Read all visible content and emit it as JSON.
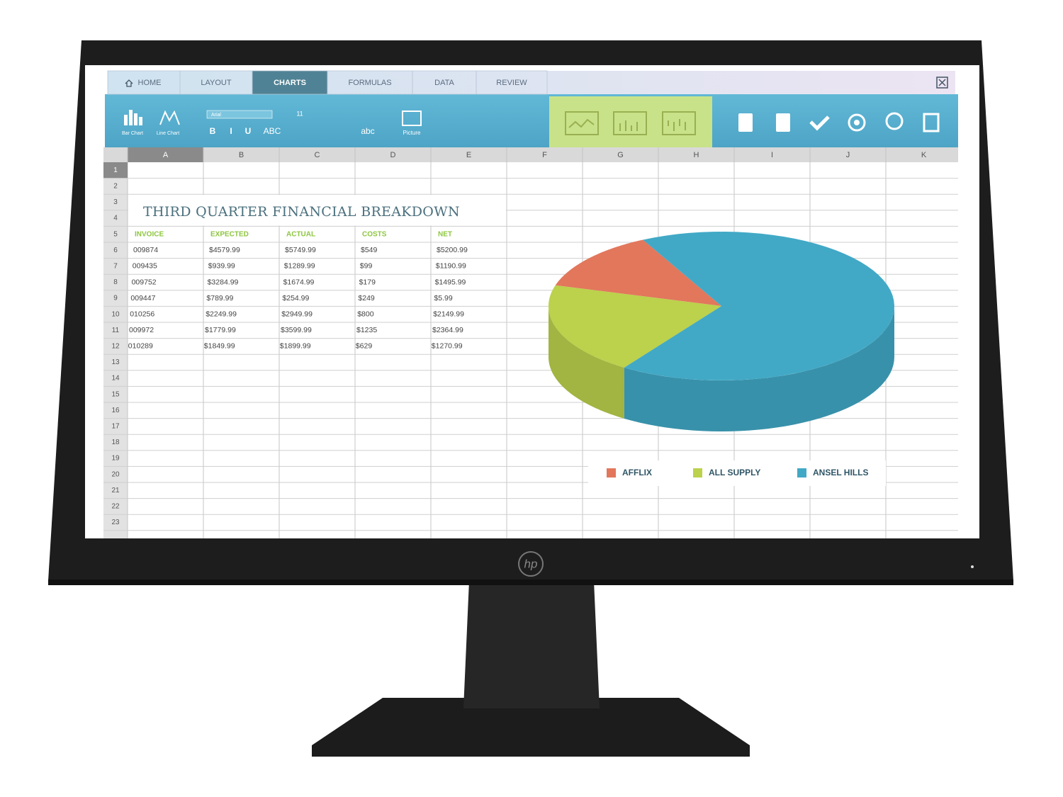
{
  "brand": "hp",
  "tabs": [
    "HOME",
    "LAYOUT",
    "CHARTS",
    "FORMULAS",
    "DATA",
    "REVIEW"
  ],
  "active_tab": 2,
  "ribbon": [
    "Bar Chart",
    "Line Chart",
    "Arial",
    "11",
    "B",
    "I",
    "U",
    "ABC",
    "abc",
    "Picture"
  ],
  "columns": [
    "A",
    "B",
    "C",
    "D",
    "E",
    "F",
    "G",
    "H",
    "I",
    "J",
    "K"
  ],
  "rows": [
    "1",
    "2",
    "3",
    "4",
    "5",
    "6",
    "7",
    "8",
    "9",
    "10",
    "11",
    "12",
    "13",
    "14",
    "15",
    "16",
    "17",
    "18",
    "19",
    "20",
    "21",
    "22",
    "23"
  ],
  "sheet_title": "THIRD QUARTER FINANCIAL BREAKDOWN",
  "table": {
    "header": [
      "INVOICE",
      "EXPECTED",
      "ACTUAL",
      "COSTS",
      "NET"
    ],
    "rows": [
      [
        "009874",
        "$4579.99",
        "$5749.99",
        "$549",
        "$5200.99"
      ],
      [
        "009435",
        "$939.99",
        "$1289.99",
        "$99",
        "$1190.99"
      ],
      [
        "009752",
        "$3284.99",
        "$1674.99",
        "$179",
        "$1495.99"
      ],
      [
        "009447",
        "$789.99",
        "$254.99",
        "$249",
        "$5.99"
      ],
      [
        "010256",
        "$2249.99",
        "$2949.99",
        "$800",
        "$2149.99"
      ],
      [
        "009972",
        "$1779.99",
        "$3599.99",
        "$1235",
        "$2364.99"
      ],
      [
        "010289",
        "$1849.99",
        "$1899.99",
        "$629",
        "$1270.99"
      ]
    ]
  },
  "pie": {
    "type": "pie",
    "categories": [
      "AFFLIX",
      "ALL SUPPLY",
      "ANSEL HILLS"
    ],
    "values": [
      13,
      20,
      67
    ],
    "colors": [
      "#e2775c",
      "#bcd14c",
      "#41a9c6"
    ]
  }
}
